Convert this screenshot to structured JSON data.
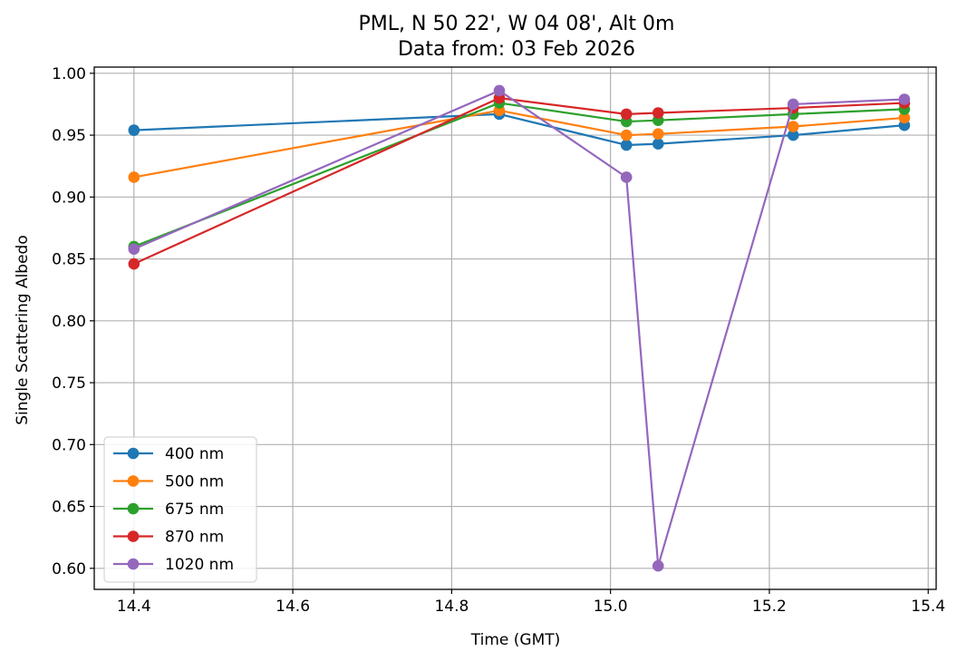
{
  "chart_data": {
    "type": "line",
    "title": [
      "PML, N 50 22', W 04 08', Alt 0m",
      "Data from: 03 Feb 2026"
    ],
    "xlabel": "Time (GMT)",
    "ylabel": "Single Scattering Albedo",
    "xlim": [
      14.35,
      15.41
    ],
    "ylim": [
      0.583,
      1.005
    ],
    "xticks": [
      14.4,
      14.6,
      14.8,
      15.0,
      15.2,
      15.4
    ],
    "xtick_labels": [
      "14.4",
      "14.6",
      "14.8",
      "15.0",
      "15.2",
      "15.4"
    ],
    "yticks": [
      0.6,
      0.65,
      0.7,
      0.75,
      0.8,
      0.85,
      0.9,
      0.95,
      1.0
    ],
    "ytick_labels": [
      "0.60",
      "0.65",
      "0.70",
      "0.75",
      "0.80",
      "0.85",
      "0.90",
      "0.95",
      "1.00"
    ],
    "grid": true,
    "legend_position": "lower-left",
    "x": [
      14.4,
      14.86,
      15.02,
      15.06,
      15.23,
      15.37
    ],
    "series": [
      {
        "name": "400 nm",
        "color": "#1f77b4",
        "values": [
          0.954,
          0.967,
          0.942,
          0.943,
          0.95,
          0.958
        ]
      },
      {
        "name": "500 nm",
        "color": "#ff7f0e",
        "values": [
          0.916,
          0.97,
          0.95,
          0.951,
          0.957,
          0.964
        ]
      },
      {
        "name": "675 nm",
        "color": "#2ca02c",
        "values": [
          0.86,
          0.976,
          0.961,
          0.962,
          0.967,
          0.971
        ]
      },
      {
        "name": "870 nm",
        "color": "#d62728",
        "values": [
          0.846,
          0.98,
          0.967,
          0.968,
          0.972,
          0.976
        ]
      },
      {
        "name": "1020 nm",
        "color": "#9467bd",
        "values": [
          0.858,
          0.986,
          0.916,
          0.602,
          0.975,
          0.979
        ]
      }
    ]
  }
}
